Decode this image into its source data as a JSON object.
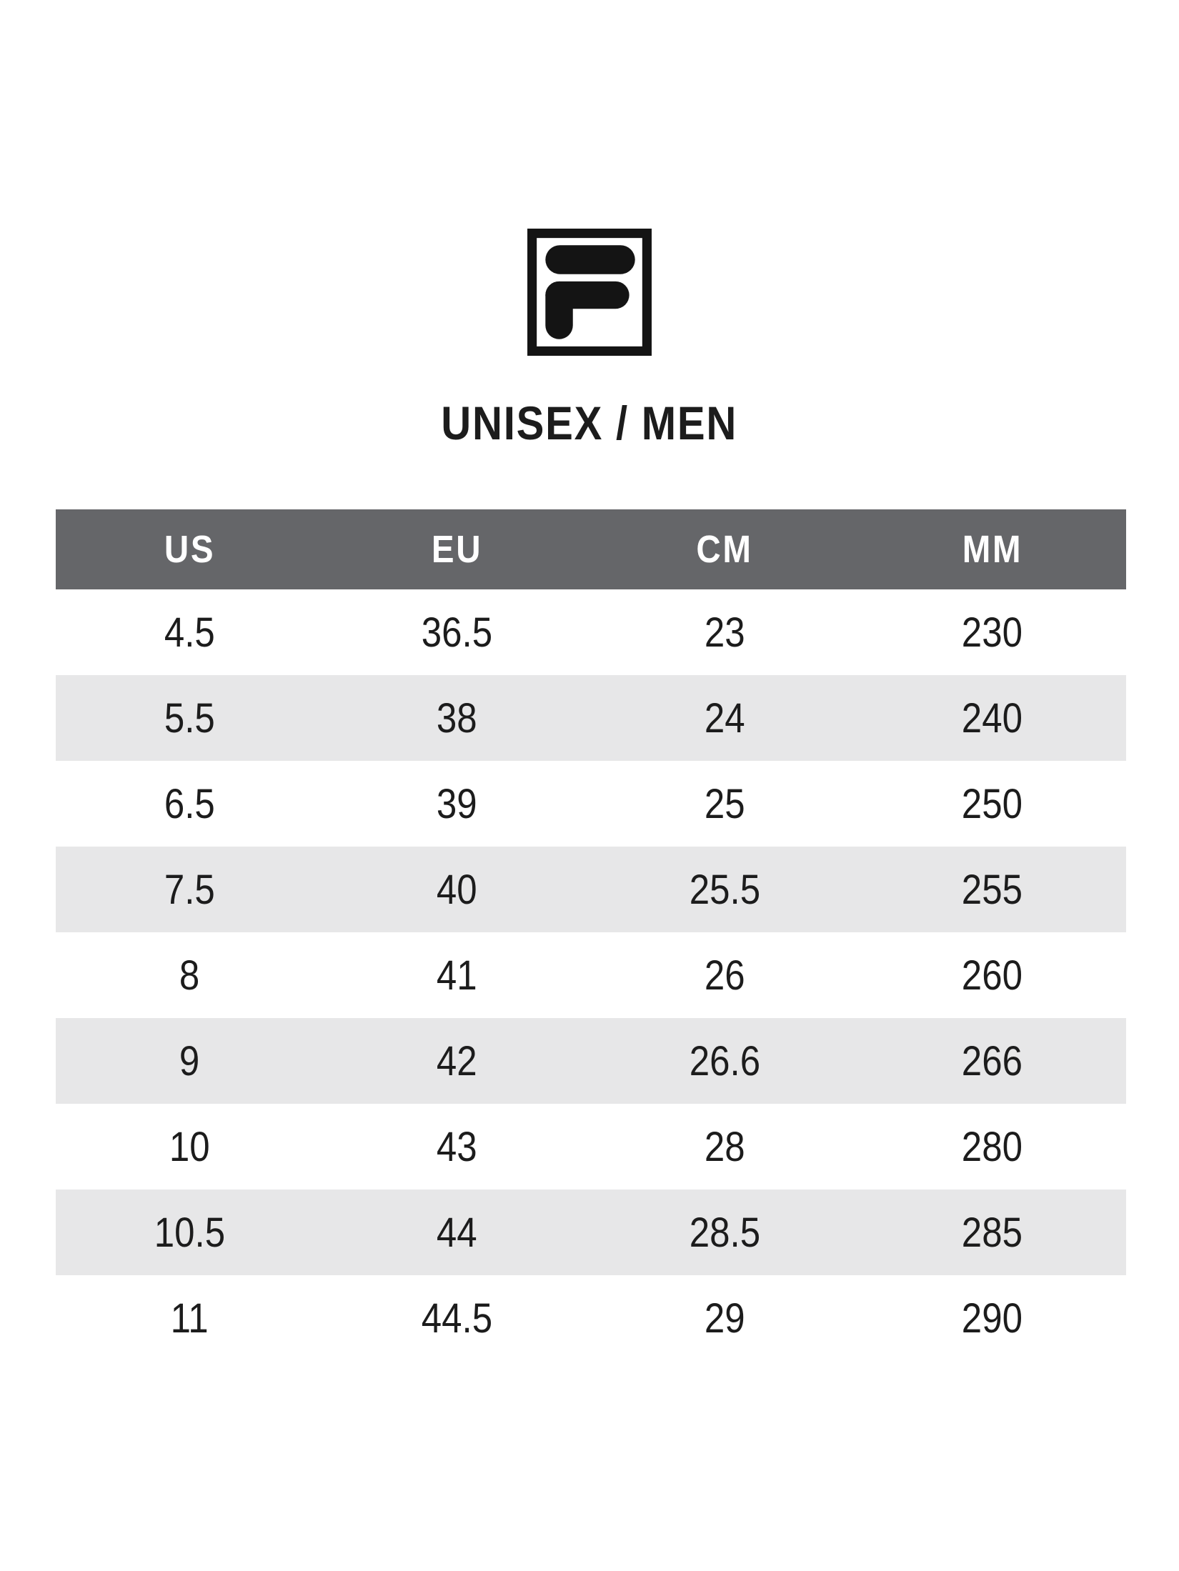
{
  "brand": {
    "logo_icon": "fila-f-box-logo-icon",
    "logo_color": "#141414"
  },
  "header": {
    "title": "UNISEX / MEN"
  },
  "chart_data": {
    "type": "table",
    "title": "UNISEX / MEN",
    "columns": [
      "US",
      "EU",
      "CM",
      "MM"
    ],
    "rows": [
      [
        "4.5",
        "36.5",
        "23",
        "230"
      ],
      [
        "5.5",
        "38",
        "24",
        "240"
      ],
      [
        "6.5",
        "39",
        "25",
        "250"
      ],
      [
        "7.5",
        "40",
        "25.5",
        "255"
      ],
      [
        "8",
        "41",
        "26",
        "260"
      ],
      [
        "9",
        "42",
        "26.6",
        "266"
      ],
      [
        "10",
        "43",
        "28",
        "280"
      ],
      [
        "10.5",
        "44",
        "28.5",
        "285"
      ],
      [
        "11",
        "44.5",
        "29",
        "290"
      ]
    ],
    "layout": {
      "zebra_striping": true,
      "first_data_row_background": "white",
      "columns_equal_width": true,
      "text_align": "center"
    }
  },
  "colors": {
    "header_bg": "#656669",
    "header_text": "#ffffff",
    "row_alt_bg": "#e7e7e8",
    "text": "#1c1c1c",
    "background": "#ffffff"
  }
}
